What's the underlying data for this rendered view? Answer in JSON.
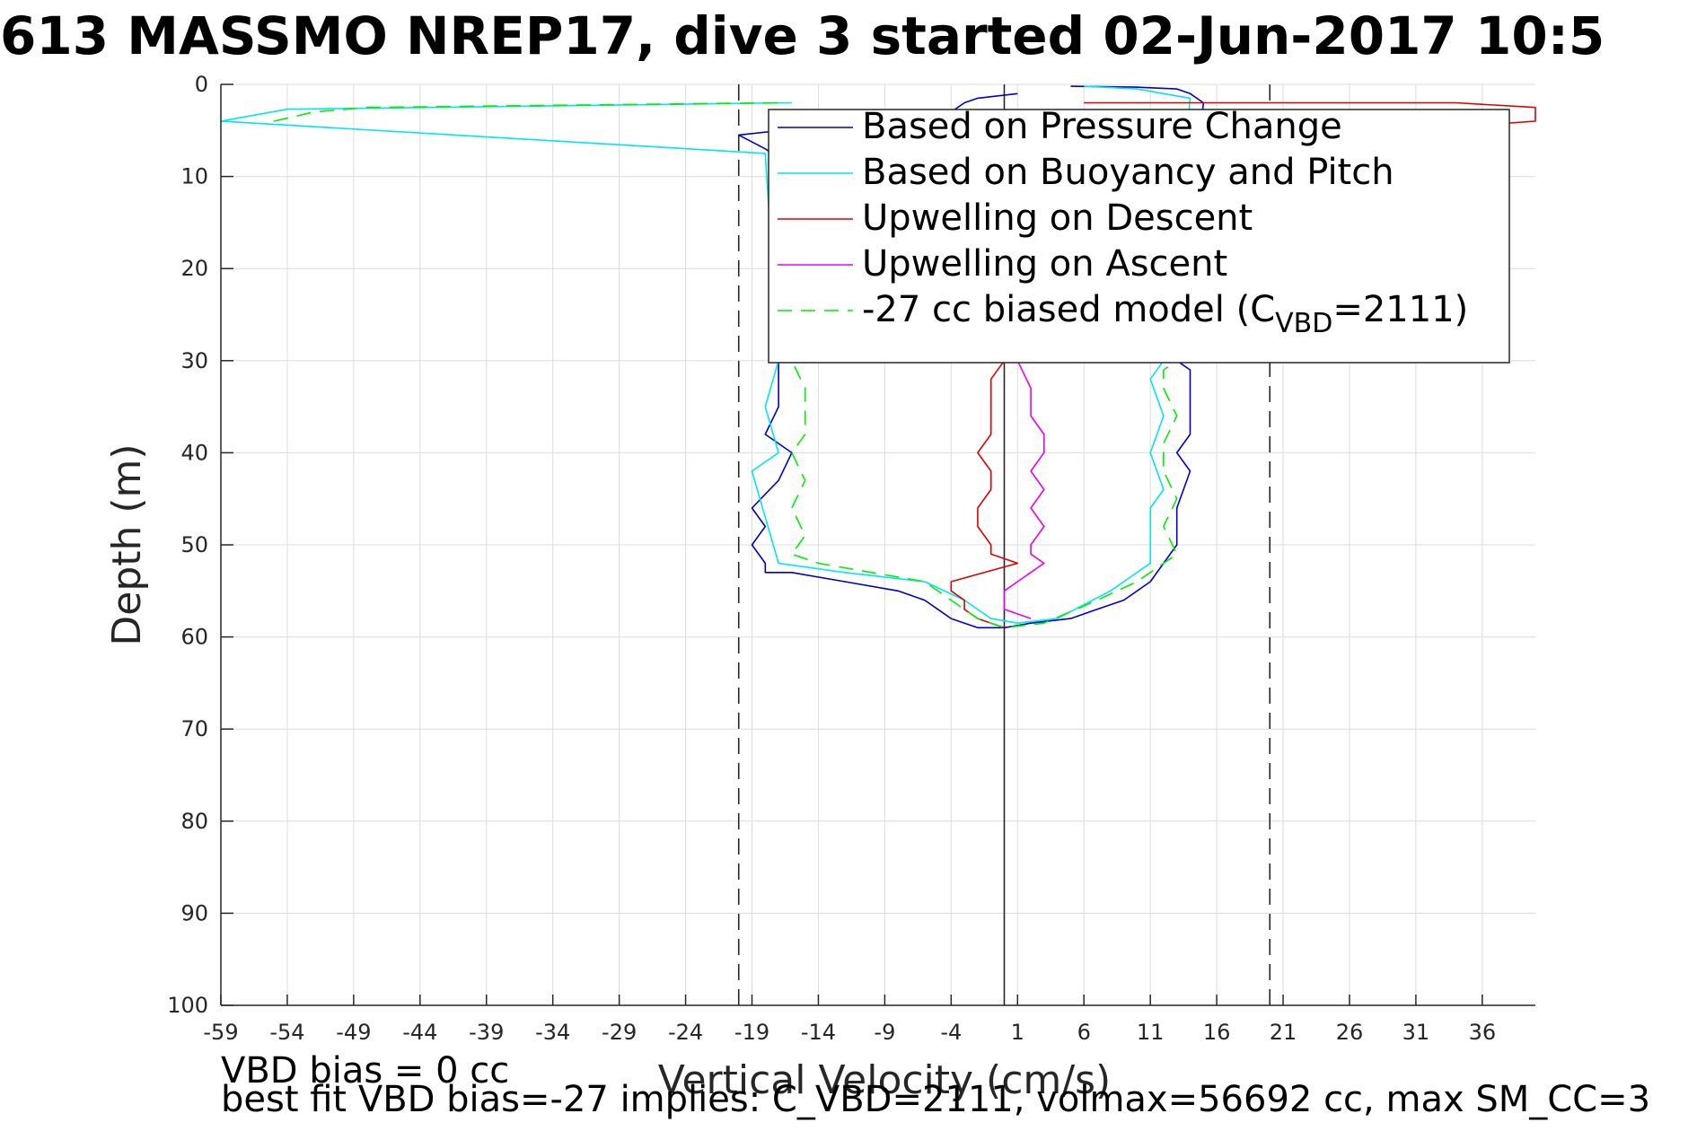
{
  "chart_data": {
    "type": "line",
    "title": "613 MASSMO NREP17, dive 3 started 02-Jun-2017 10:5",
    "xlabel": "Vertical Velocity (cm/s)",
    "ylabel": "Depth (m)",
    "xlim": [
      -59,
      40
    ],
    "ylim": [
      0,
      100
    ],
    "y_reversed": true,
    "grid": true,
    "legend_position": "top-right",
    "xticks": [
      -59,
      -54,
      -49,
      -44,
      -39,
      -34,
      -29,
      -24,
      -19,
      -14,
      -9,
      -4,
      1,
      6,
      11,
      16,
      21,
      26,
      31,
      36
    ],
    "yticks": [
      0,
      10,
      20,
      30,
      40,
      50,
      60,
      70,
      80,
      90,
      100
    ],
    "reference_lines": {
      "dashed_x": [
        -20,
        20
      ],
      "solid_x": 0
    },
    "series": [
      {
        "name": "Based on Pressure Change",
        "color": "#0000cc",
        "style": "solid",
        "x": [
          1,
          -2,
          -3,
          -4,
          -20,
          -18,
          -17,
          -17,
          -17,
          -18,
          -16,
          -17,
          -19,
          -18,
          -19,
          -18,
          -18,
          -16,
          -12,
          -8,
          -6,
          -5,
          -4,
          -3,
          -2,
          0,
          2,
          5,
          7,
          9,
          11,
          12,
          13,
          13,
          14,
          13,
          14,
          14,
          14,
          13,
          14,
          14,
          13,
          13,
          15,
          14,
          13,
          10,
          5
        ],
        "y": [
          1,
          1.5,
          2,
          3,
          5.5,
          7,
          8,
          30,
          35,
          38,
          40,
          43,
          46,
          48,
          50,
          52,
          53,
          53,
          54,
          55,
          56,
          57,
          58,
          58.5,
          59,
          59,
          58.5,
          58,
          57,
          56,
          54,
          52,
          50,
          46,
          42,
          40,
          38,
          35,
          31,
          30,
          30,
          30,
          30,
          30,
          2,
          1,
          0.5,
          0.3,
          0.2
        ]
      },
      {
        "name": "Based on Buoyancy and Pitch",
        "color": "#00e5ee",
        "style": "solid",
        "x": [
          -16,
          -54,
          -59,
          -18,
          -17,
          -18,
          -17,
          -19,
          -18,
          -17,
          -12,
          -6,
          -3,
          -1,
          1,
          4,
          8,
          11,
          11,
          11,
          12,
          11,
          12,
          11,
          12,
          12,
          14,
          12,
          10,
          6
        ],
        "y": [
          2,
          2.7,
          4,
          7.5,
          30,
          35,
          40,
          42,
          47,
          52,
          53,
          54,
          56,
          58,
          58.5,
          58,
          55,
          52,
          50,
          46,
          44,
          40,
          36,
          32,
          30,
          30,
          1.5,
          1,
          0.5,
          0.2
        ]
      },
      {
        "name": "Upwelling on Descent",
        "color": "#e00000",
        "style": "solid",
        "x": [
          6,
          34,
          40,
          40,
          35,
          0,
          -1,
          -1,
          -1,
          -1,
          -2,
          -1,
          -1,
          -2,
          -2,
          -1,
          -1,
          1,
          -4,
          -4,
          -3,
          -3,
          -2,
          -1,
          0
        ],
        "y": [
          2,
          2,
          2.5,
          4,
          4.5,
          30,
          32,
          34,
          36,
          38,
          40,
          42,
          44,
          46,
          48,
          50,
          51,
          52,
          54,
          55,
          56,
          57,
          58,
          58.5,
          59
        ]
      },
      {
        "name": "Upwelling on Ascent",
        "color": "#ee00ee",
        "style": "solid",
        "x": [
          1,
          2,
          2,
          3,
          3,
          2,
          3,
          2,
          3,
          2,
          2,
          3,
          1,
          0,
          0,
          0,
          2
        ],
        "y": [
          30,
          33,
          36,
          38,
          40,
          42,
          44,
          46,
          48,
          50,
          51,
          52,
          54,
          55,
          56,
          57,
          58
        ]
      },
      {
        "name": "-27 cc biased model (C<sub>VBD</sub>=2111)",
        "legend_text": "-27 cc biased model (C",
        "legend_subscript": "VBD",
        "legend_suffix": "=2111)",
        "color": "#00ee00",
        "style": "dashed",
        "x": [
          -55,
          -52,
          -48,
          -17,
          -16,
          -15,
          -15,
          -15,
          -16,
          -15,
          -16,
          -15,
          -16,
          -14,
          -10,
          -6,
          -4,
          -2,
          0,
          3,
          7,
          10,
          13,
          12,
          13,
          12,
          12,
          13,
          12,
          12,
          13
        ],
        "y": [
          4,
          3,
          2.5,
          2,
          30,
          33,
          36,
          38,
          40,
          43,
          46,
          49,
          51,
          52,
          53,
          54,
          56,
          58,
          59,
          58.5,
          56,
          54,
          51,
          48,
          45,
          42,
          39,
          36,
          33,
          31,
          30
        ]
      }
    ],
    "annotations": {
      "line1": "VBD bias = 0 cc",
      "line2": "best fit VBD bias=-27 implies: C_VBD=2111, volmax=56692 cc, max SM_CC=3"
    }
  }
}
